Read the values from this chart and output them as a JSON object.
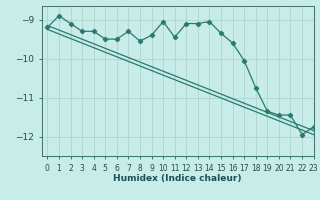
{
  "xlabel": "Humidex (Indice chaleur)",
  "bg_color": "#c8ece8",
  "grid_color": "#b0d8d4",
  "line_color": "#2a7a70",
  "xlim": [
    -0.5,
    23
  ],
  "ylim": [
    -12.5,
    -8.65
  ],
  "yticks": [
    -12,
    -11,
    -10,
    -9
  ],
  "xticks": [
    0,
    1,
    2,
    3,
    4,
    5,
    6,
    7,
    8,
    9,
    10,
    11,
    12,
    13,
    14,
    15,
    16,
    17,
    18,
    19,
    20,
    21,
    22,
    23
  ],
  "noisy_x": [
    0,
    1,
    2,
    3,
    4,
    5,
    6,
    7,
    8,
    9,
    10,
    11,
    12,
    13,
    14,
    15,
    16,
    17,
    18,
    19,
    20,
    21,
    22,
    23
  ],
  "noisy_y": [
    -9.2,
    -8.9,
    -9.1,
    -9.3,
    -9.3,
    -9.5,
    -9.5,
    -9.3,
    -9.55,
    -9.4,
    -9.05,
    -9.45,
    -9.1,
    -9.1,
    -9.05,
    -9.35,
    -9.6,
    -10.05,
    -10.75,
    -11.35,
    -11.45,
    -11.45,
    -11.95,
    -11.75
  ],
  "trend1_x": [
    0,
    23
  ],
  "trend1_y": [
    -9.15,
    -11.85
  ],
  "trend2_x": [
    0,
    23
  ],
  "trend2_y": [
    -9.25,
    -11.95
  ]
}
